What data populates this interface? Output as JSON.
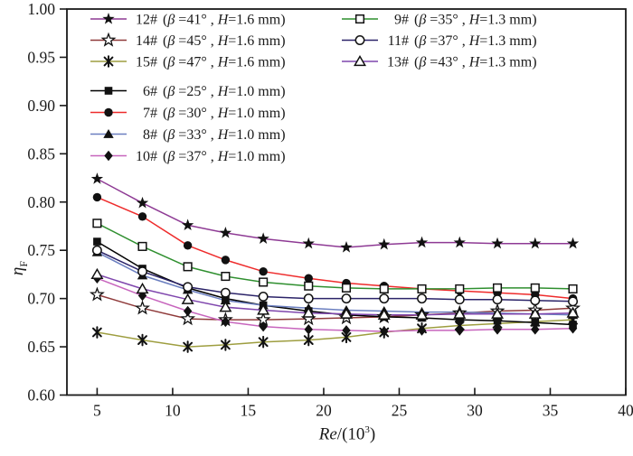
{
  "chart_data": {
    "type": "line",
    "title": "",
    "xlabel_italic": "Re",
    "xlabel_rest": "/(10",
    "xlabel_sup": "3",
    "xlabel_close": ")",
    "ylabel_italic": "η",
    "ylabel_sub": "F",
    "xlim": [
      3,
      40
    ],
    "ylim": [
      0.6,
      1.0
    ],
    "xticks": [
      "5",
      "10",
      "15",
      "20",
      "25",
      "30",
      "35",
      "40"
    ],
    "yticks": [
      "1.00",
      "0.95",
      "0.90",
      "0.85",
      "0.80",
      "0.75",
      "0.70",
      "0.65",
      "0.60"
    ],
    "grid": false,
    "legend_position": "top-left-inside",
    "legend_symbols": {
      "beta_sym": "β",
      "h_sym": "H",
      "deg_sym": "°",
      "unit": "mm"
    },
    "x": [
      5,
      8,
      11,
      13.5,
      16,
      19,
      21.5,
      24,
      26.5,
      29,
      31.5,
      34,
      36.5
    ],
    "series": [
      {
        "name": "12#",
        "beta_deg": "41",
        "H_mm": "1.6",
        "color": "#8e3a94",
        "marker": "star-filled",
        "legend_col": 0,
        "legend_row": 0,
        "values": [
          0.824,
          0.799,
          0.776,
          0.768,
          0.762,
          0.757,
          0.753,
          0.756,
          0.758,
          0.758,
          0.757,
          0.757,
          0.757
        ]
      },
      {
        "name": "14#",
        "beta_deg": "45",
        "H_mm": "1.6",
        "color": "#8f3a3a",
        "marker": "star-open",
        "legend_col": 0,
        "legend_row": 1,
        "values": [
          0.704,
          0.69,
          0.679,
          0.678,
          0.678,
          0.679,
          0.68,
          0.681,
          0.683,
          0.685,
          0.687,
          0.688,
          0.69
        ]
      },
      {
        "name": "15#",
        "beta_deg": "47",
        "H_mm": "1.6",
        "color": "#9e9e40",
        "marker": "asterisk",
        "legend_col": 0,
        "legend_row": 2,
        "values": [
          0.665,
          0.657,
          0.65,
          0.652,
          0.655,
          0.657,
          0.66,
          0.665,
          0.669,
          0.672,
          0.674,
          0.676,
          0.678
        ]
      },
      {
        "name": "6#",
        "beta_deg": "25",
        "H_mm": "1.0",
        "color": "#000000",
        "marker": "square-filled",
        "legend_col": 0,
        "legend_row": 3,
        "values": [
          0.759,
          0.731,
          0.711,
          0.7,
          0.693,
          0.687,
          0.683,
          0.681,
          0.68,
          0.678,
          0.677,
          0.675,
          0.673
        ]
      },
      {
        "name": "7#",
        "beta_deg": "30",
        "H_mm": "1.0",
        "color": "#ee2b2b",
        "marker": "circle-filled",
        "legend_col": 0,
        "legend_row": 4,
        "values": [
          0.805,
          0.785,
          0.755,
          0.74,
          0.728,
          0.721,
          0.716,
          0.713,
          0.71,
          0.708,
          0.706,
          0.704,
          0.7
        ]
      },
      {
        "name": "8#",
        "beta_deg": "33",
        "H_mm": "1.0",
        "color": "#6b7fc0",
        "marker": "triangle-filled",
        "legend_col": 0,
        "legend_row": 5,
        "values": [
          0.748,
          0.724,
          0.709,
          0.698,
          0.693,
          0.69,
          0.688,
          0.687,
          0.686,
          0.686,
          0.685,
          0.684,
          0.683
        ]
      },
      {
        "name": "10#",
        "beta_deg": "37",
        "H_mm": "1.0",
        "color": "#c765bd",
        "marker": "diamond-filled",
        "legend_col": 0,
        "legend_row": 6,
        "values": [
          0.721,
          0.703,
          0.687,
          0.676,
          0.671,
          0.668,
          0.667,
          0.666,
          0.667,
          0.667,
          0.668,
          0.668,
          0.669
        ]
      },
      {
        "name": "9#",
        "beta_deg": "35",
        "H_mm": "1.3",
        "color": "#2f8f2f",
        "marker": "square-open",
        "legend_col": 1,
        "legend_row": 0,
        "values": [
          0.778,
          0.754,
          0.733,
          0.723,
          0.717,
          0.713,
          0.711,
          0.71,
          0.71,
          0.71,
          0.711,
          0.711,
          0.71
        ]
      },
      {
        "name": "11#",
        "beta_deg": "37",
        "H_mm": "1.3",
        "color": "#2b2368",
        "marker": "circle-open",
        "legend_col": 1,
        "legend_row": 1,
        "values": [
          0.75,
          0.728,
          0.712,
          0.706,
          0.702,
          0.7,
          0.7,
          0.7,
          0.7,
          0.699,
          0.699,
          0.698,
          0.697
        ]
      },
      {
        "name": "13#",
        "beta_deg": "43",
        "H_mm": "1.3",
        "color": "#7f46ad",
        "marker": "triangle-open",
        "legend_col": 1,
        "legend_row": 2,
        "values": [
          0.725,
          0.71,
          0.699,
          0.691,
          0.688,
          0.685,
          0.684,
          0.683,
          0.683,
          0.684,
          0.684,
          0.684,
          0.685
        ]
      }
    ]
  }
}
